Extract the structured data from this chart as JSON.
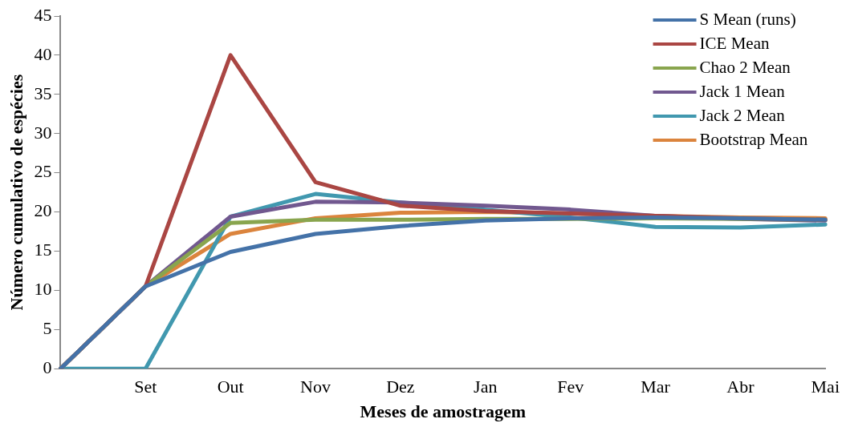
{
  "chart_data": {
    "type": "line",
    "xlabel": "Meses de amostragem",
    "ylabel": "Número cumulativo de espécies",
    "categories": [
      null,
      "Set",
      "Out",
      "Nov",
      "Dez",
      "Jan",
      "Fev",
      "Mar",
      "Abr",
      "Mai"
    ],
    "ylim": [
      0,
      45
    ],
    "yticks": [
      0,
      5,
      10,
      15,
      20,
      25,
      30,
      35,
      40,
      45
    ],
    "grid": false,
    "legend": "top right",
    "marker": "none",
    "line_style": "solid",
    "series": [
      {
        "name": "S Mean (runs)",
        "color": "#4472a8",
        "values": [
          0,
          10.5,
          14.9,
          17.2,
          18.2,
          18.9,
          19.2,
          19.3,
          19.2,
          19.0
        ]
      },
      {
        "name": "ICE Mean",
        "color": "#aa4643",
        "values": [
          0,
          10.5,
          40,
          23.8,
          20.8,
          20.1,
          19.8,
          19.5,
          19.2,
          19.0
        ]
      },
      {
        "name": "Chao 2 Mean",
        "color": "#89a54e",
        "values": [
          0,
          10.5,
          18.6,
          19.0,
          19.0,
          19.1,
          19.1,
          19.2,
          19.1,
          19.0
        ]
      },
      {
        "name": "Jack 1 Mean",
        "color": "#71588f",
        "values": [
          0,
          10.5,
          19.4,
          21.3,
          21.2,
          20.8,
          20.3,
          19.5,
          19.1,
          18.9
        ]
      },
      {
        "name": "Jack 2 Mean",
        "color": "#4198af",
        "values": [
          0,
          0,
          19.4,
          22.3,
          21.2,
          20.3,
          19.3,
          18.1,
          18.0,
          18.4
        ]
      },
      {
        "name": "Bootstrap Mean",
        "color": "#db843d",
        "values": [
          0,
          10.5,
          17.2,
          19.2,
          19.9,
          20.0,
          19.8,
          19.5,
          19.3,
          19.2
        ]
      }
    ]
  }
}
